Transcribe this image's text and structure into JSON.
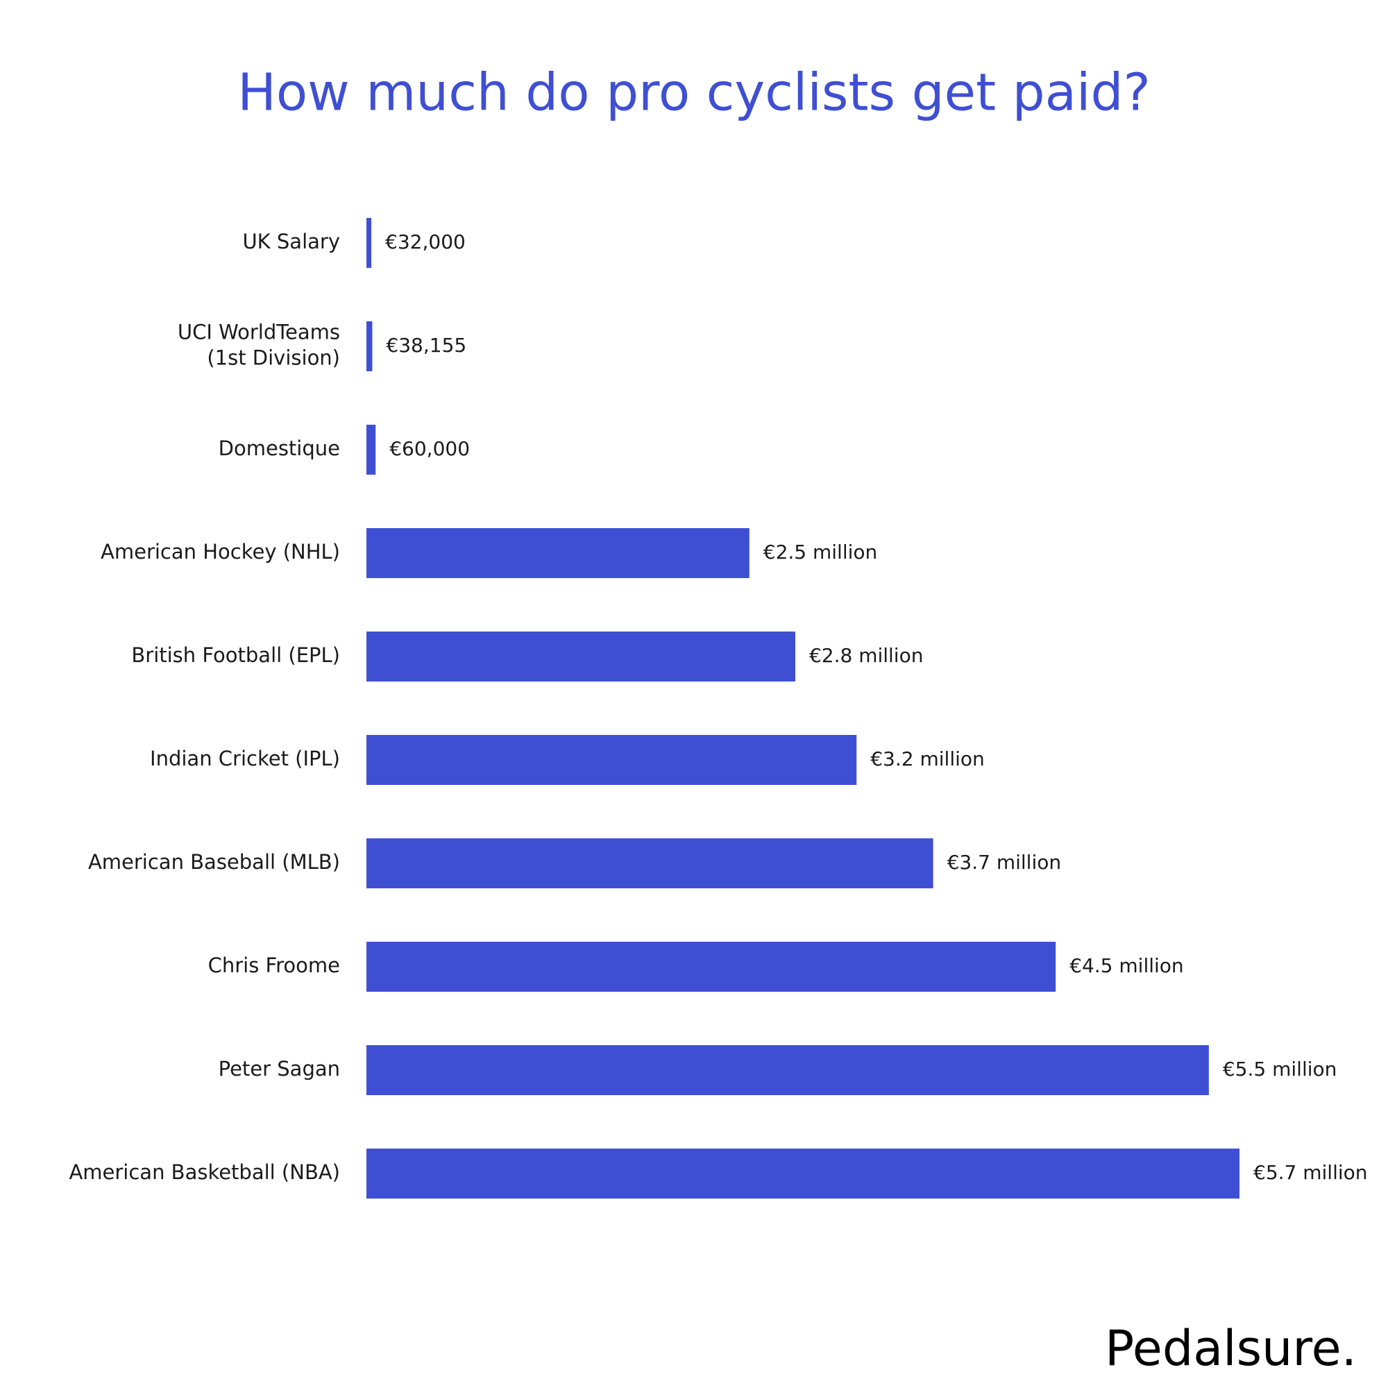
{
  "chart_data": {
    "type": "bar",
    "orientation": "horizontal",
    "title": "How much do pro cyclists get paid?",
    "categories": [
      "UK Salary",
      "UCI WorldTeams\n(1st Division)",
      "Domestique",
      "American Hockey (NHL)",
      "British Football (EPL)",
      "Indian Cricket (IPL)",
      "American Baseball (MLB)",
      "Chris Froome",
      "Peter Sagan",
      "American Basketball (NBA)"
    ],
    "values": [
      32000,
      38155,
      60000,
      2500000,
      2800000,
      3200000,
      3700000,
      4500000,
      5500000,
      5700000
    ],
    "value_labels": [
      "€32,000",
      "€38,155",
      "€60,000",
      "€2.5 million",
      "€2.8 million",
      "€3.2 million",
      "€3.7 million",
      "€4.5 million",
      "€5.5 million",
      "€5.7 million"
    ],
    "color": "#3f4fd3"
  },
  "brand": "Pedalsure."
}
